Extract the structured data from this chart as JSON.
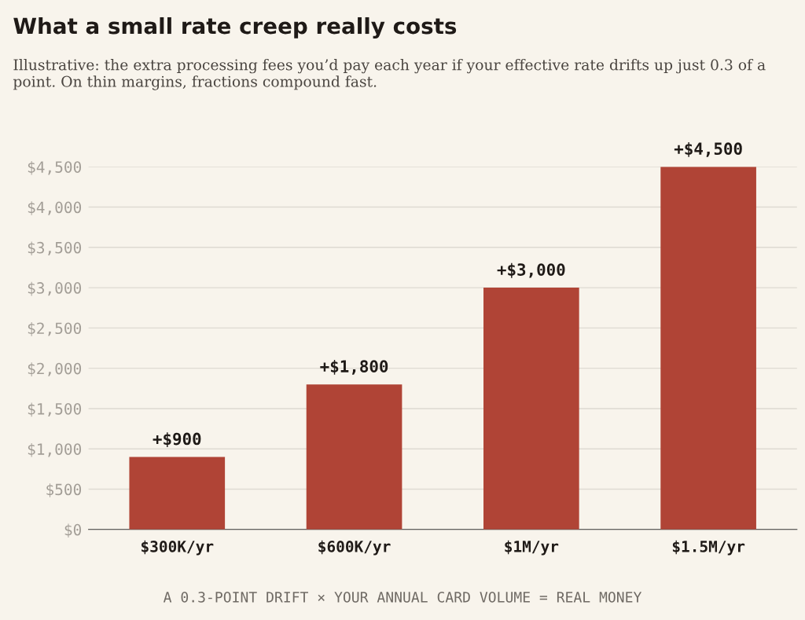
{
  "chart_data": {
    "type": "bar",
    "title": "What a small rate creep really costs",
    "subtitle": "Illustrative: the extra processing fees you’d pay each year if your effective rate drifts up just 0.3 of a point. On thin margins, fractions compound fast.",
    "categories": [
      "$300K/yr",
      "$600K/yr",
      "$1M/yr",
      "$1.5M/yr"
    ],
    "values": [
      900,
      1800,
      3000,
      4500
    ],
    "value_labels": [
      "+$900",
      "+$1,800",
      "+$3,000",
      "+$4,500"
    ],
    "color": "#b04436",
    "ylim": [
      0,
      4500
    ],
    "yticks": [
      {
        "value": 0,
        "label": "$0"
      },
      {
        "value": 500,
        "label": "$500"
      },
      {
        "value": 1000,
        "label": "$1,000"
      },
      {
        "value": 1500,
        "label": "$1,500"
      },
      {
        "value": 2000,
        "label": "$2,000"
      },
      {
        "value": 2500,
        "label": "$2,500"
      },
      {
        "value": 3000,
        "label": "$3,000"
      },
      {
        "value": 3500,
        "label": "$3,500"
      },
      {
        "value": 4000,
        "label": "$4,000"
      },
      {
        "value": 4500,
        "label": "$4,500"
      }
    ],
    "grid": "y",
    "legend": false,
    "annotations": [
      "A 0.3-POINT DRIFT × YOUR ANNUAL CARD VOLUME = REAL MONEY"
    ]
  }
}
